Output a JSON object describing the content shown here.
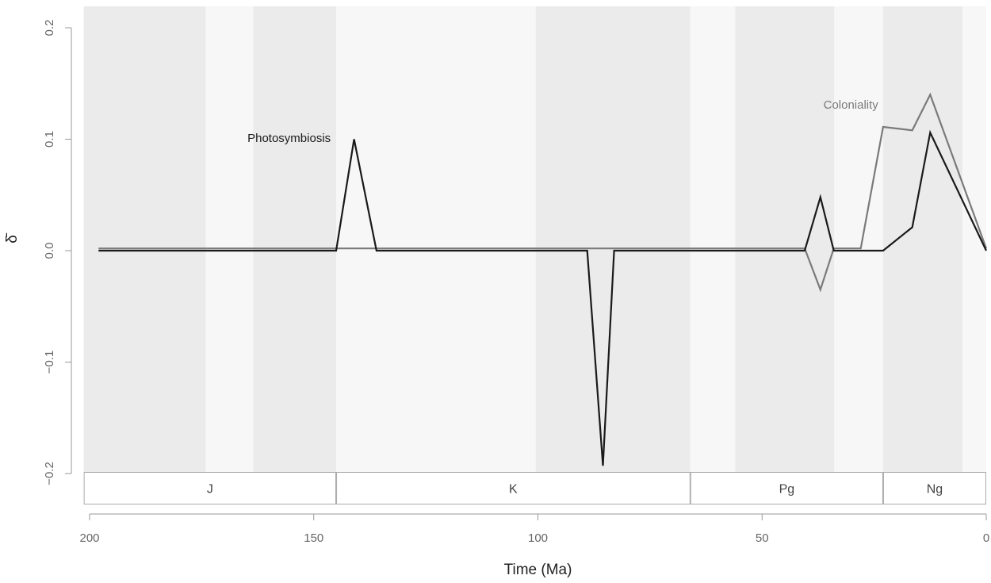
{
  "chart_data": {
    "type": "line",
    "xlabel": "Time (Ma)",
    "ylabel": "δ̄",
    "xlim": [
      200,
      0
    ],
    "ylim": [
      -0.2,
      0.2
    ],
    "x_ticks": [
      200,
      150,
      100,
      50,
      0
    ],
    "y_ticks": [
      -0.2,
      -0.1,
      0.0,
      0.1,
      0.2
    ],
    "y_tick_labels": [
      "−0.2",
      "−0.1",
      "0.0",
      "0.1",
      "0.2"
    ],
    "grid": false,
    "background_bands": [
      {
        "start": 201.3,
        "end": 174.1,
        "shade": "dark"
      },
      {
        "start": 174.1,
        "end": 163.5,
        "shade": "light"
      },
      {
        "start": 163.5,
        "end": 145.0,
        "shade": "dark"
      },
      {
        "start": 145.0,
        "end": 100.5,
        "shade": "light"
      },
      {
        "start": 100.5,
        "end": 66.0,
        "shade": "dark"
      },
      {
        "start": 66.0,
        "end": 56.0,
        "shade": "light"
      },
      {
        "start": 56.0,
        "end": 33.9,
        "shade": "dark"
      },
      {
        "start": 33.9,
        "end": 23.0,
        "shade": "light"
      },
      {
        "start": 23.0,
        "end": 5.3,
        "shade": "dark"
      },
      {
        "start": 5.3,
        "end": 0.0,
        "shade": "light"
      }
    ],
    "periods": [
      {
        "label": "J",
        "start": 201.3,
        "end": 145.0
      },
      {
        "label": "K",
        "start": 145.0,
        "end": 66.0
      },
      {
        "label": "Pg",
        "start": 66.0,
        "end": 23.0
      },
      {
        "label": "Ng",
        "start": 23.0,
        "end": 0.0
      }
    ],
    "series": [
      {
        "name": "Photosymbiosis",
        "color": "#1a1a1a",
        "x": [
          198,
          145,
          141,
          136,
          89,
          85.5,
          83,
          40.5,
          37,
          34,
          23,
          16.5,
          12.5,
          0
        ],
        "y": [
          0.0,
          0.0,
          0.1,
          0.0,
          0.0,
          -0.193,
          0.0,
          0.0,
          0.048,
          0.0,
          0.0,
          0.021,
          0.106,
          0.0
        ]
      },
      {
        "name": "Coloniality",
        "color": "#7a7a7a",
        "x": [
          198,
          145,
          40.5,
          37,
          34,
          28,
          23,
          16.5,
          12.5,
          0
        ],
        "y": [
          0.002,
          0.002,
          0.002,
          -0.035,
          0.002,
          0.002,
          0.111,
          0.108,
          0.14,
          0.002
        ]
      }
    ],
    "annotations": [
      {
        "text": "Photosymbiosis",
        "x": 155.5,
        "y": 0.101,
        "color": "#1a1a1a"
      },
      {
        "text": "Coloniality",
        "x": 30.2,
        "y": 0.131,
        "color": "#7a7a7a"
      }
    ],
    "colors": {
      "band_dark": "#ebebeb",
      "band_light": "#f7f7f7",
      "axis": "#999999"
    }
  }
}
